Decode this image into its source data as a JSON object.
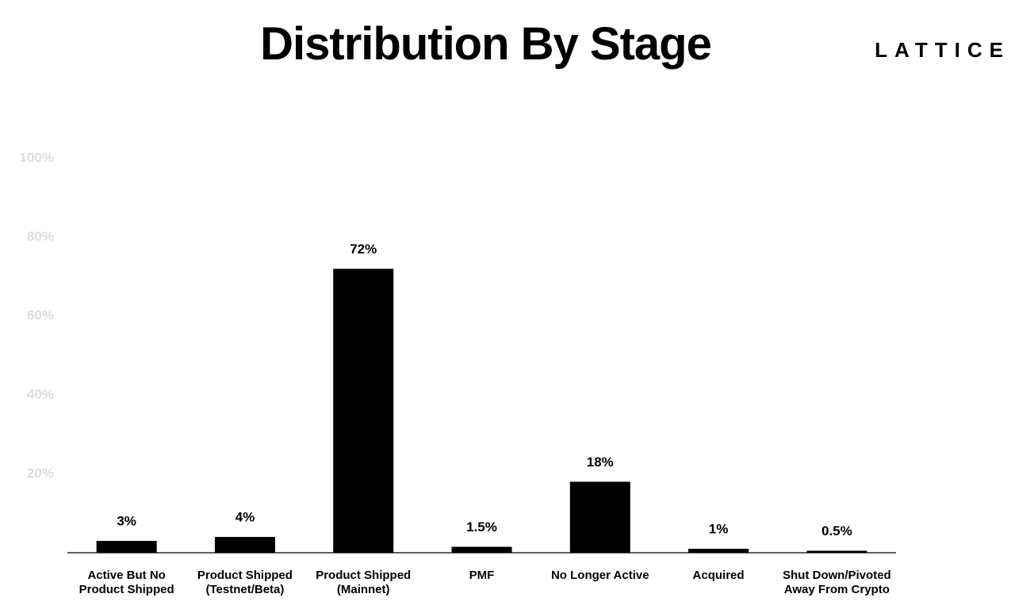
{
  "chart_data": {
    "type": "bar",
    "title": "Distribution By Stage",
    "brand": "LATTICE",
    "categories": [
      "Active But No Product Shipped",
      "Product Shipped (Testnet/Beta)",
      "Product Shipped (Mainnet)",
      "PMF",
      "No Longer Active",
      "Acquired",
      "Shut Down/Pivoted Away From Crypto"
    ],
    "values": [
      3,
      4,
      72,
      1.5,
      18,
      1,
      0.5
    ],
    "value_labels": [
      "3%",
      "4%",
      "72%",
      "1.5%",
      "18%",
      "1%",
      "0.5%"
    ],
    "color": "#000000",
    "ylim": [
      0,
      100
    ],
    "yticks": [
      {
        "value": 20,
        "label": "20%"
      },
      {
        "value": 40,
        "label": "40%"
      },
      {
        "value": 60,
        "label": "60%"
      },
      {
        "value": 80,
        "label": "80%"
      },
      {
        "value": 100,
        "label": "100%"
      }
    ],
    "grid": false
  }
}
